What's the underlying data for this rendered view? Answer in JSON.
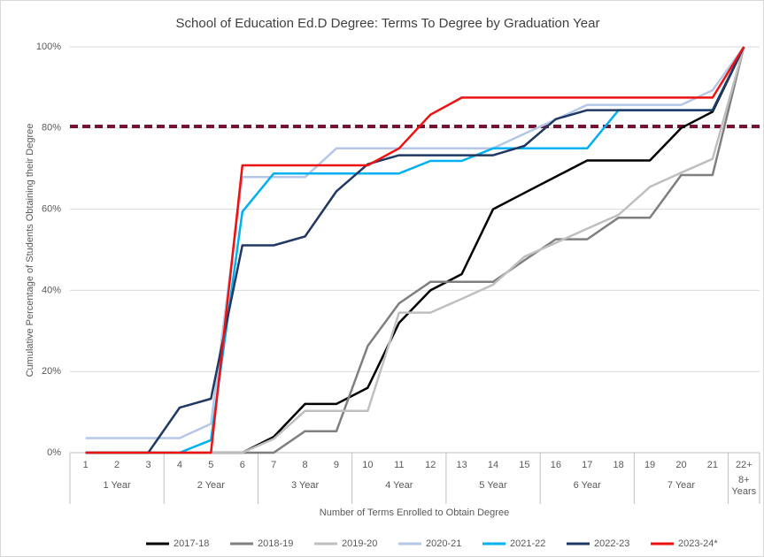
{
  "chart_data": {
    "type": "line",
    "title": "School of Education Ed.D Degree: Terms To Degree by Graduation Year",
    "y_label": "Cumulative Percentage of Students Obtaining their Degree",
    "x_label": "Number of Terms Enrolled to Obtain Degree",
    "categories": [
      "1",
      "2",
      "3",
      "4",
      "5",
      "6",
      "7",
      "8",
      "9",
      "10",
      "11",
      "12",
      "13",
      "14",
      "15",
      "16",
      "17",
      "18",
      "19",
      "20",
      "21",
      "22+"
    ],
    "category_groups": [
      {
        "label": "1 Year",
        "categories": 3
      },
      {
        "label": "2 Year",
        "categories": 3
      },
      {
        "label": "3 Year",
        "categories": 3
      },
      {
        "label": "4 Year",
        "categories": 3
      },
      {
        "label": "5 Year",
        "categories": 3
      },
      {
        "label": "6 Year",
        "categories": 3
      },
      {
        "label": "7 Year",
        "categories": 3
      },
      {
        "label": "8+ Years",
        "categories": 1
      }
    ],
    "ylim": [
      0,
      100
    ],
    "yticks": [
      {
        "value": 0,
        "label": "0%"
      },
      {
        "value": 20,
        "label": "20%"
      },
      {
        "value": 40,
        "label": "40%"
      },
      {
        "value": 60,
        "label": "60%"
      },
      {
        "value": 80,
        "label": "80%"
      },
      {
        "value": 100,
        "label": "100%"
      }
    ],
    "grid": true,
    "legend": "bottom",
    "reference_line": {
      "value": 80.4,
      "color": "#7b1030",
      "dashed": true
    },
    "series": [
      {
        "name": "2017-18",
        "color": "#000000",
        "values": [
          0,
          0,
          0,
          0,
          0,
          0,
          3.9,
          12,
          12,
          16,
          32,
          40,
          44,
          60,
          64,
          68,
          72,
          72,
          72,
          80,
          84,
          100
        ]
      },
      {
        "name": "2018-19",
        "color": "#7f7f7f",
        "values": [
          0,
          0,
          0,
          0,
          0,
          0,
          0,
          5.3,
          5.3,
          26.3,
          36.8,
          42.1,
          42.1,
          42.1,
          47.4,
          52.6,
          52.6,
          57.9,
          57.9,
          68.4,
          68.4,
          100
        ]
      },
      {
        "name": "2019-20",
        "color": "#bfbfbf",
        "values": [
          0,
          0,
          0,
          0,
          0,
          0,
          3.4,
          10.3,
          10.3,
          10.3,
          34.5,
          34.5,
          37.9,
          41.4,
          48.3,
          51.7,
          55.2,
          58.6,
          65.5,
          69,
          72.4,
          100
        ]
      },
      {
        "name": "2020-21",
        "color": "#b4c7e7",
        "values": [
          3.6,
          3.6,
          3.6,
          3.6,
          7.1,
          67.9,
          67.9,
          67.9,
          75,
          75,
          75,
          75,
          75,
          75,
          78.6,
          82.1,
          85.7,
          85.7,
          85.7,
          85.7,
          89.3,
          100
        ]
      },
      {
        "name": "2021-22",
        "color": "#00b0f0",
        "values": [
          0,
          0,
          0,
          0,
          3.1,
          59.4,
          68.8,
          68.8,
          68.8,
          68.8,
          68.8,
          71.9,
          71.9,
          75,
          75,
          75,
          75,
          84.4,
          84.4,
          84.4,
          84.4,
          100
        ]
      },
      {
        "name": "2022-23",
        "color": "#203864",
        "values": [
          0,
          0,
          0,
          11.1,
          13.3,
          51.1,
          51.1,
          53.3,
          64.4,
          71.1,
          73.3,
          73.3,
          73.3,
          73.3,
          75.6,
          82.2,
          84.4,
          84.4,
          84.4,
          84.4,
          84.4,
          100
        ]
      },
      {
        "name": "2023-24*",
        "color": "#ee1111",
        "values": [
          0,
          0,
          0,
          0,
          0,
          70.8,
          70.8,
          70.8,
          70.8,
          70.8,
          75,
          83.3,
          87.5,
          87.5,
          87.5,
          87.5,
          87.5,
          87.5,
          87.5,
          87.5,
          87.5,
          100
        ]
      }
    ]
  }
}
